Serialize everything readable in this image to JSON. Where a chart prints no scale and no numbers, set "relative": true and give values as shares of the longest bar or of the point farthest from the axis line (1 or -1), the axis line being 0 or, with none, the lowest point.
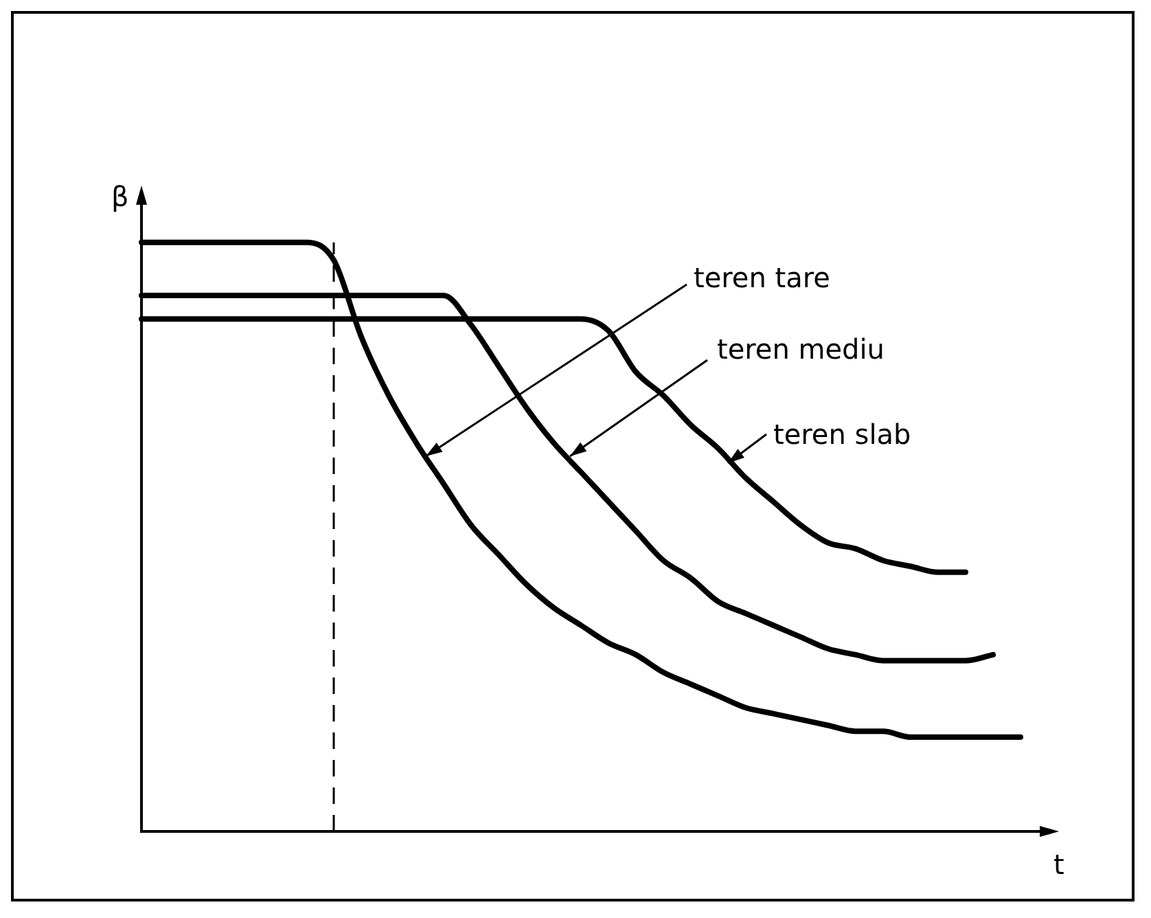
{
  "chart_data": {
    "type": "line",
    "relative": true,
    "xlabel": "t",
    "ylabel": "β",
    "tick_labels": false,
    "legend": false,
    "marker": "none",
    "line_style": "solid",
    "categories": [
      null,
      null,
      null,
      null,
      null,
      null,
      null,
      null,
      null,
      null,
      null,
      null,
      null,
      null,
      null,
      null,
      null,
      null,
      null,
      null,
      null,
      null,
      null,
      null,
      null,
      null,
      null,
      null,
      null,
      null,
      null,
      null,
      null
    ],
    "series": [
      {
        "color": "#000000",
        "values": [
          1,
          1,
          1,
          1,
          1,
          1,
          1,
          0.97,
          0.84,
          0.74,
          0.66,
          0.59,
          0.52,
          0.47,
          0.42,
          0.38,
          0.35,
          0.32,
          0.3,
          0.27,
          0.25,
          0.23,
          0.21,
          0.2,
          0.19,
          0.18,
          0.17,
          0.17,
          0.16,
          0.16,
          0.16,
          0.16,
          0.16
        ]
      },
      {
        "color": "#000000",
        "values": [
          0.91,
          0.91,
          0.91,
          0.91,
          0.91,
          0.91,
          0.91,
          0.91,
          0.91,
          0.91,
          0.91,
          0.91,
          0.86,
          0.79,
          0.72,
          0.66,
          0.61,
          0.56,
          0.51,
          0.46,
          0.43,
          0.39,
          0.37,
          0.35,
          0.33,
          0.31,
          0.3,
          0.29,
          0.29,
          0.29,
          0.29,
          0.3,
          null
        ]
      },
      {
        "color": "#000000",
        "values": [
          0.87,
          0.87,
          0.87,
          0.87,
          0.87,
          0.87,
          0.87,
          0.87,
          0.87,
          0.87,
          0.87,
          0.87,
          0.87,
          0.87,
          0.87,
          0.87,
          0.87,
          0.85,
          0.78,
          0.74,
          0.69,
          0.65,
          0.6,
          0.56,
          0.52,
          0.49,
          0.48,
          0.46,
          0.45,
          0.44,
          0.44,
          null,
          null
        ]
      }
    ],
    "annotations": [
      "teren tare",
      "teren mediu",
      "teren slab"
    ]
  }
}
